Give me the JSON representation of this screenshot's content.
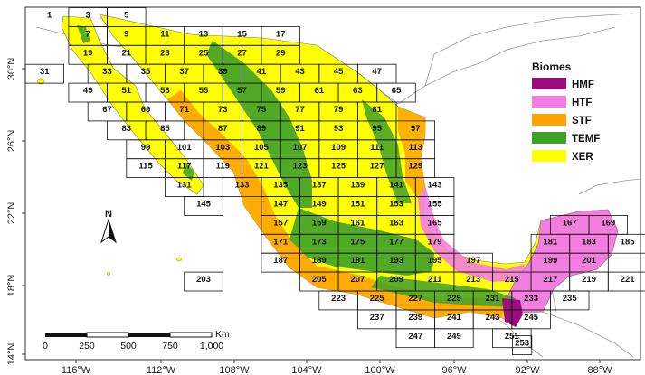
{
  "map": {
    "lon_ticks": [
      "116°W",
      "112°W",
      "108°W",
      "104°W",
      "100°W",
      "96°W",
      "92°W",
      "88°W"
    ],
    "lat_ticks": [
      "30°N",
      "26°N",
      "22°N",
      "18°N",
      "14°N"
    ],
    "legend": {
      "title": "Biomes",
      "items": [
        {
          "code": "HMF",
          "color": "#9b0d7c"
        },
        {
          "code": "HTF",
          "color": "#f47de0"
        },
        {
          "code": "STF",
          "color": "#ffa500"
        },
        {
          "code": "TEMF",
          "color": "#3fa02a"
        },
        {
          "code": "XER",
          "color": "#ffff00"
        }
      ]
    },
    "north_label": "N",
    "scale": {
      "unit": "Km",
      "labels": [
        "0",
        "250",
        "500",
        "750",
        "1,000"
      ]
    },
    "cells": [
      "1",
      "3",
      "5",
      "7",
      "9",
      "11",
      "13",
      "15",
      "17",
      "19",
      "21",
      "23",
      "25",
      "27",
      "29",
      "31",
      "33",
      "35",
      "37",
      "39",
      "41",
      "43",
      "45",
      "47",
      "49",
      "51",
      "53",
      "55",
      "57",
      "59",
      "61",
      "63",
      "65",
      "67",
      "69",
      "71",
      "73",
      "75",
      "77",
      "79",
      "81",
      "83",
      "85",
      "87",
      "89",
      "91",
      "93",
      "95",
      "97",
      "99",
      "101",
      "103",
      "105",
      "107",
      "109",
      "111",
      "113",
      "115",
      "117",
      "119",
      "121",
      "123",
      "125",
      "127",
      "129",
      "131",
      "133",
      "135",
      "137",
      "139",
      "141",
      "143",
      "145",
      "147",
      "149",
      "151",
      "153",
      "155",
      "157",
      "159",
      "161",
      "163",
      "165",
      "167",
      "169",
      "171",
      "173",
      "175",
      "177",
      "179",
      "181",
      "183",
      "185",
      "187",
      "189",
      "191",
      "193",
      "195",
      "197",
      "199",
      "201",
      "203",
      "205",
      "207",
      "209",
      "211",
      "213",
      "215",
      "217",
      "219",
      "221",
      "223",
      "225",
      "227",
      "229",
      "231",
      "233",
      "235",
      "237",
      "239",
      "241",
      "243",
      "245",
      "247",
      "249",
      "251",
      "253"
    ]
  }
}
